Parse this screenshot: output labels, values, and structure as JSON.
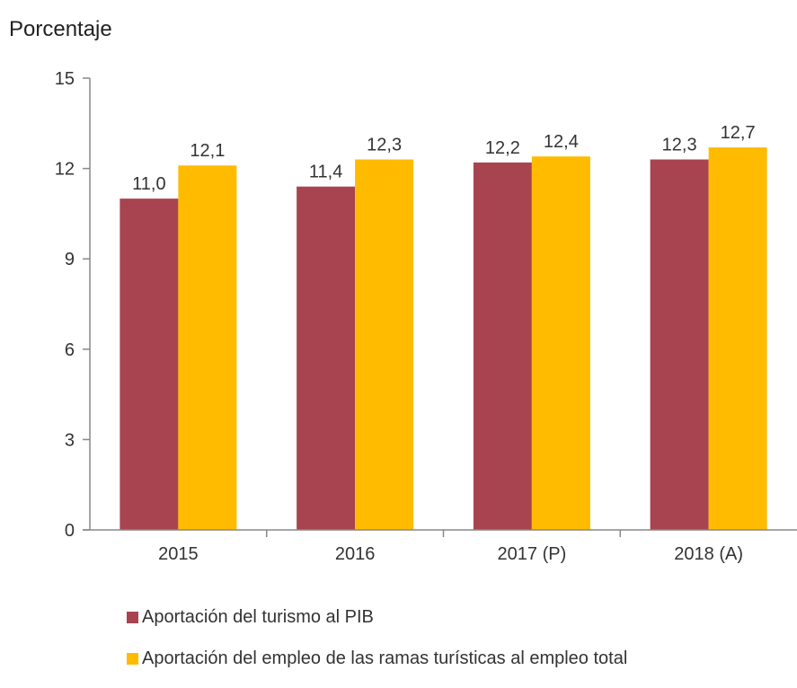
{
  "chart_data": {
    "type": "bar",
    "ylabel": "Porcentaje",
    "xlabel": "",
    "ylim": [
      0,
      15
    ],
    "yticks": [
      "0",
      "3",
      "6",
      "9",
      "12",
      "15"
    ],
    "categories": [
      "2015",
      "2016",
      "2017 (P)",
      "2018 (A)"
    ],
    "series": [
      {
        "name": "Aportación del turismo al PIB",
        "color": "#a8444f",
        "values": [
          11.0,
          11.4,
          12.2,
          12.3
        ],
        "labels": [
          "11,0",
          "11,4",
          "12,2",
          "12,3"
        ]
      },
      {
        "name": "Aportación del empleo de las ramas turísticas al empleo total",
        "color": "#ffbb00",
        "values": [
          12.1,
          12.3,
          12.4,
          12.7
        ],
        "labels": [
          "12,1",
          "12,3",
          "12,4",
          "12,7"
        ]
      }
    ],
    "grid": false,
    "legend_position": "bottom-left"
  }
}
